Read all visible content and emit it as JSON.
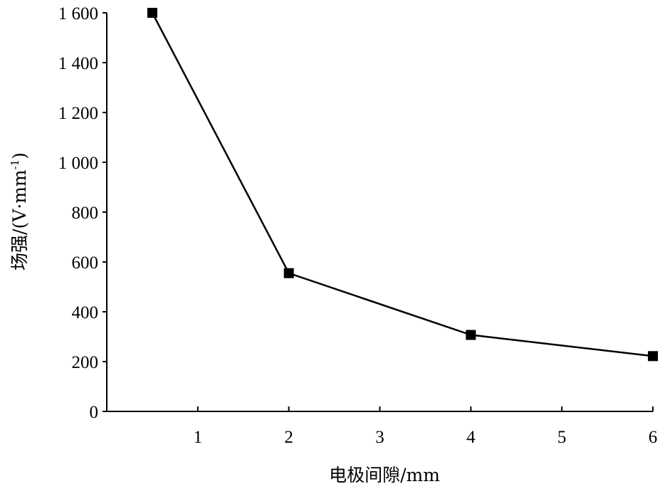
{
  "chart_data": {
    "type": "line",
    "xlabel": "电极间隙/mm",
    "ylabel_main": "场强/(V·mm",
    "ylabel_sup": "-1",
    "ylabel_close": ")",
    "xlim": [
      0,
      6
    ],
    "ylim": [
      0,
      1600
    ],
    "x_ticks": [
      1,
      2,
      3,
      4,
      5,
      6
    ],
    "y_ticks": [
      0,
      200,
      400,
      600,
      800,
      1000,
      1200,
      1400,
      1600
    ],
    "y_tick_labels": [
      "0",
      "200",
      "400",
      "600",
      "800",
      "1 000",
      "1 200",
      "1 400",
      "1 600"
    ],
    "grid": false,
    "series": [
      {
        "marker": "square",
        "color": "#000000",
        "x": [
          0.5,
          2,
          4,
          6
        ],
        "y": [
          1600,
          555,
          307,
          222
        ]
      }
    ]
  }
}
